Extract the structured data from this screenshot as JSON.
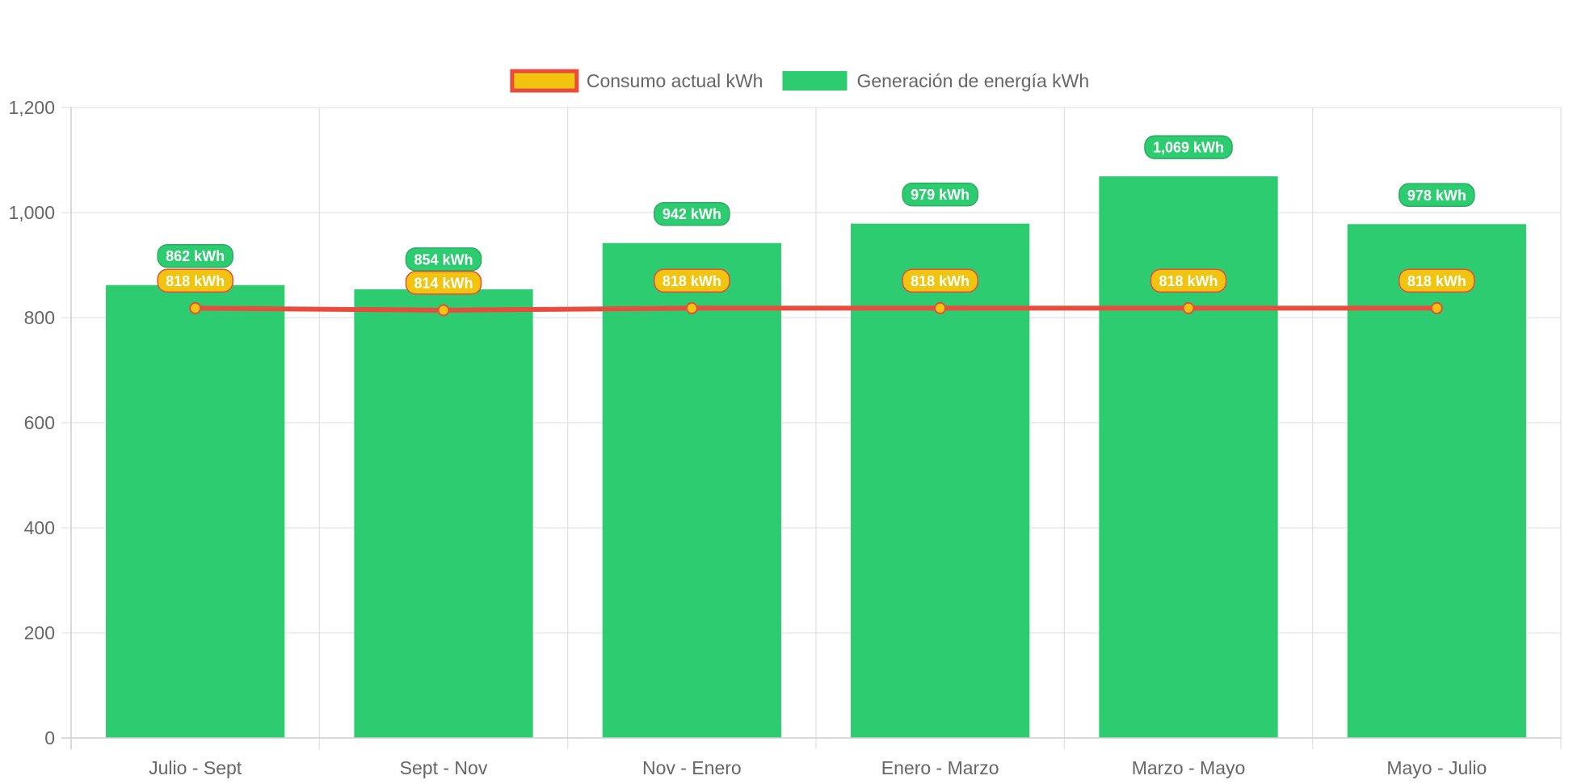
{
  "chart_data": {
    "type": "bar",
    "categories": [
      "Julio - Sept",
      "Sept - Nov",
      "Nov - Enero",
      "Enero - Marzo",
      "Marzo - Mayo",
      "Mayo - Julio"
    ],
    "series": [
      {
        "name": "Generación de energía kWh",
        "type": "bar",
        "values": [
          862,
          854,
          942,
          979,
          1069,
          978
        ],
        "data_labels": [
          "862 kWh",
          "854 kWh",
          "942 kWh",
          "979 kWh",
          "1,069 kWh",
          "978 kWh"
        ],
        "color": "#2ecc71",
        "label_border": "#27ae60"
      },
      {
        "name": "Consumo actual kWh",
        "type": "line",
        "values": [
          818,
          814,
          818,
          818,
          818,
          818
        ],
        "data_labels": [
          "818 kWh",
          "814 kWh",
          "818 kWh",
          "818 kWh",
          "818 kWh",
          "818 kWh"
        ],
        "color": "#f1c40f",
        "border_color": "#e74c3c"
      }
    ],
    "y_ticks": [
      "0",
      "200",
      "400",
      "600",
      "800",
      "1,000",
      "1,200"
    ],
    "y_tick_values": [
      0,
      200,
      400,
      600,
      800,
      1000,
      1200
    ],
    "ylim": [
      0,
      1200
    ],
    "grid": true,
    "legend_position": "top",
    "legend_order": [
      "Consumo actual kWh",
      "Generación de energía kWh"
    ],
    "title": "",
    "xlabel": "",
    "ylabel": ""
  }
}
